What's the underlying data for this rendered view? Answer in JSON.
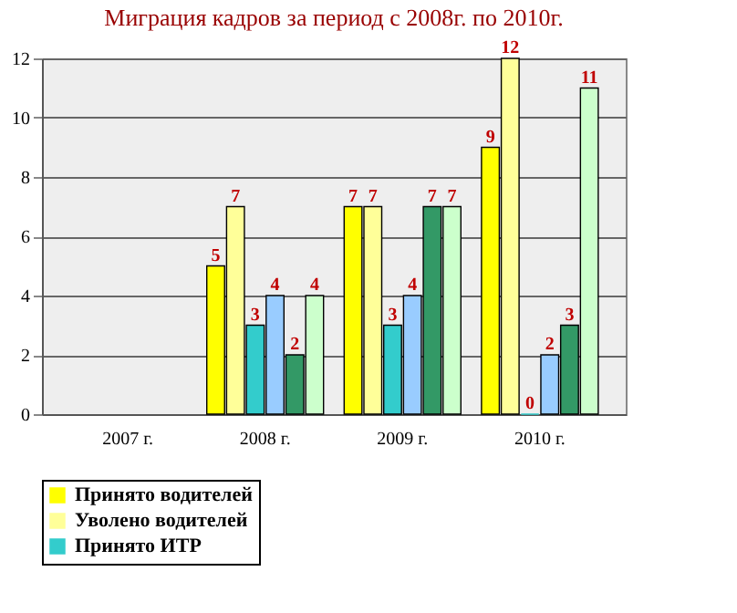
{
  "chart_data": {
    "type": "bar",
    "title": "Миграция кадров за период с 2008г. по 2010г.",
    "categories": [
      "2007 г.",
      "2008 г.",
      "2009 г.",
      "2010 г."
    ],
    "series": [
      {
        "name": "Принято водителей",
        "color": "#ffff00",
        "values": [
          null,
          5,
          7,
          9
        ]
      },
      {
        "name": "Уволено водителей",
        "color": "#ffff99",
        "values": [
          null,
          7,
          7,
          12
        ]
      },
      {
        "name": "Принято ИТР",
        "color": "#33cccc",
        "values": [
          null,
          3,
          3,
          0
        ]
      },
      {
        "color": "#99ccff",
        "values": [
          null,
          4,
          4,
          2
        ]
      },
      {
        "color": "#339966",
        "values": [
          null,
          2,
          7,
          3
        ]
      },
      {
        "color": "#ccffcc",
        "values": [
          null,
          4,
          7,
          11
        ]
      }
    ],
    "ylim": [
      0,
      12
    ],
    "yticks": [
      0,
      2,
      4,
      6,
      8,
      10,
      12
    ],
    "grid": "y",
    "data_labels": true,
    "legend": "bottom"
  }
}
